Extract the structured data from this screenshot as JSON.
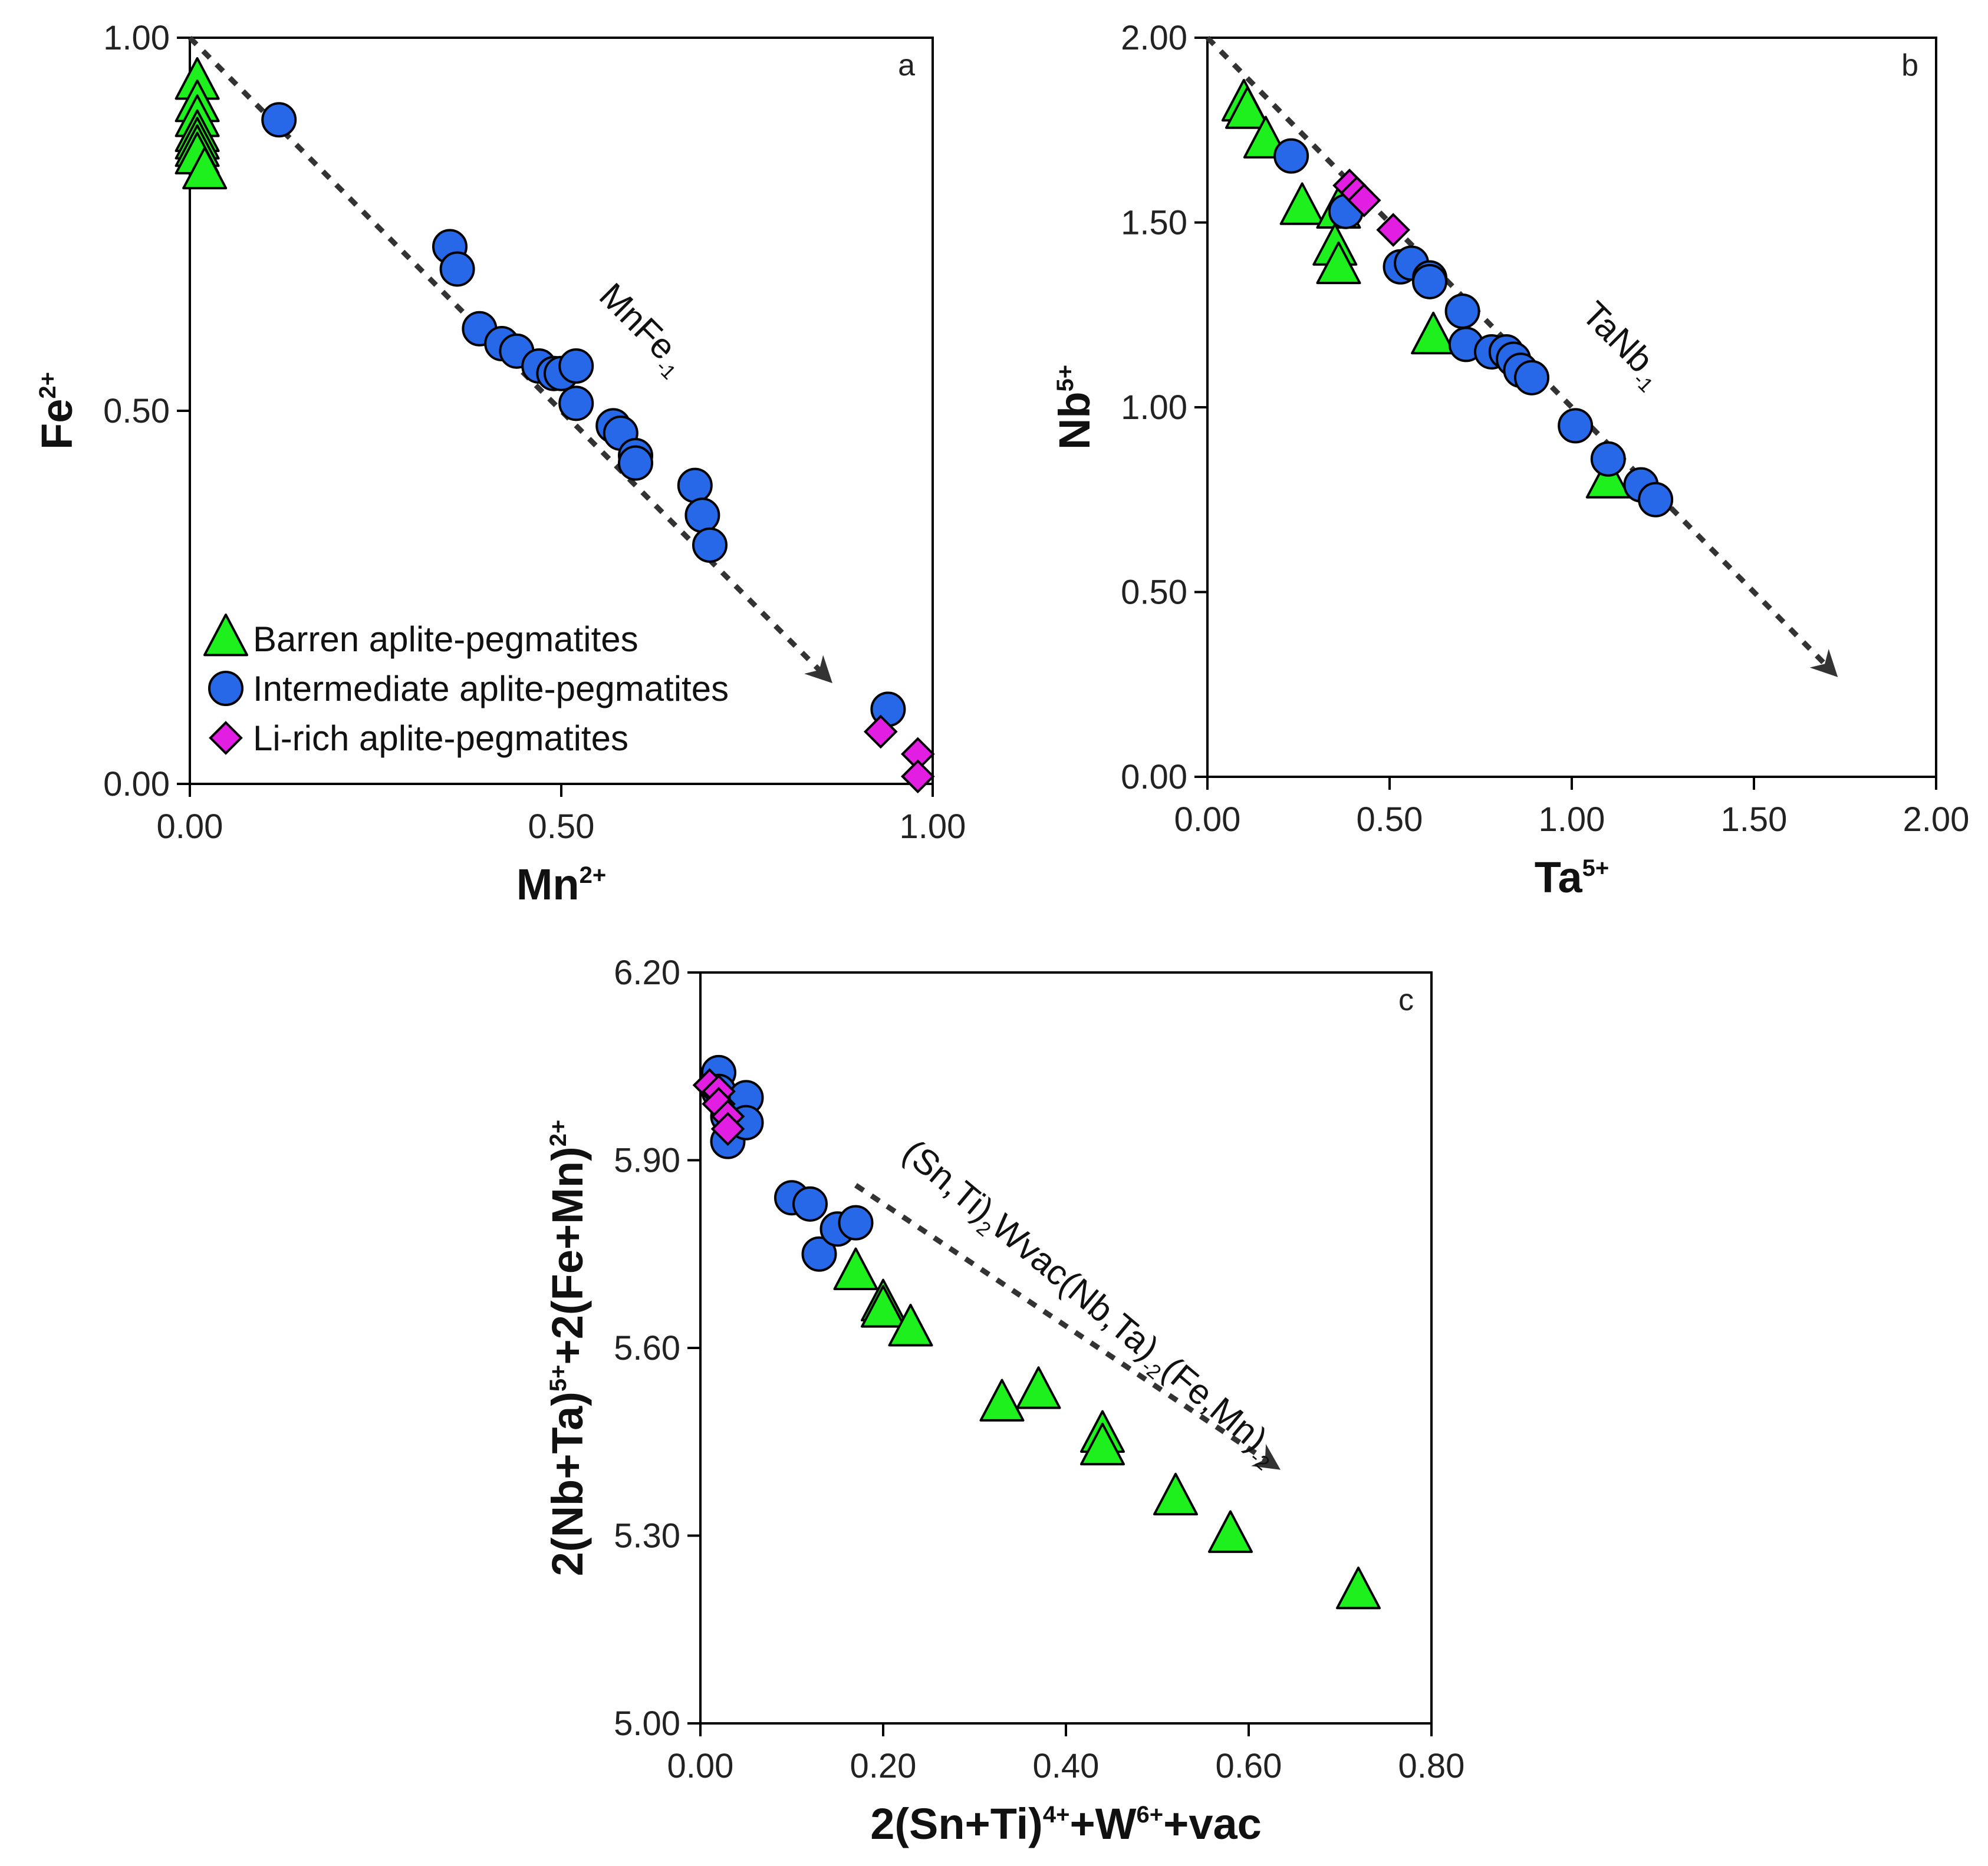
{
  "figure_title": "",
  "colors": {
    "barren": "#1ef01e",
    "intermediate": "#2668e8",
    "li_rich": "#e21ee2",
    "arrow": "#333333",
    "axis": "#000000"
  },
  "legend": {
    "position": "bottom-left of panel a",
    "entries": [
      {
        "label": "Barren aplite-pegmatites",
        "marker": "triangle",
        "color": "#1ef01e"
      },
      {
        "label": "Intermediate aplite-pegmatites",
        "marker": "circle",
        "color": "#2668e8"
      },
      {
        "label": "Li-rich aplite-pegmatites",
        "marker": "diamond",
        "color": "#e21ee2"
      }
    ]
  },
  "chart_data": [
    {
      "type": "scatter",
      "panel": "a",
      "xlabel": {
        "base": "Mn",
        "sup": "2+"
      },
      "ylabel": {
        "base": "Fe",
        "sup": "2+"
      },
      "xlim": [
        0,
        1
      ],
      "ylim": [
        0,
        1
      ],
      "xticks": [
        "0.00",
        "0.50",
        "1.00"
      ],
      "yticks": [
        "0.00",
        "0.50",
        "1.00"
      ],
      "xtick_values": [
        0,
        0.5,
        1
      ],
      "ytick_values": [
        0,
        0.5,
        1
      ],
      "vector": {
        "from": [
          0,
          1
        ],
        "to": [
          0.86,
          0.14
        ]
      },
      "annotation": {
        "base": "MnFe",
        "sub": "-1",
        "x": 0.6,
        "y": 0.6,
        "rotation": 45
      },
      "series": [
        {
          "name": "Barren aplite-pegmatites",
          "marker": "triangle",
          "x": [
            0.01,
            0.01,
            0.01,
            0.01,
            0.01,
            0.01,
            0.01,
            0.02
          ],
          "y": [
            0.94,
            0.91,
            0.89,
            0.87,
            0.86,
            0.85,
            0.84,
            0.82
          ]
        },
        {
          "name": "Intermediate aplite-pegmatites",
          "marker": "circle",
          "x": [
            0.12,
            0.35,
            0.36,
            0.39,
            0.42,
            0.44,
            0.47,
            0.49,
            0.5,
            0.52,
            0.52,
            0.57,
            0.58,
            0.6,
            0.6,
            0.68,
            0.69,
            0.7,
            0.94
          ],
          "y": [
            0.89,
            0.72,
            0.69,
            0.61,
            0.59,
            0.58,
            0.56,
            0.55,
            0.55,
            0.56,
            0.51,
            0.48,
            0.47,
            0.44,
            0.43,
            0.4,
            0.36,
            0.32,
            0.1
          ]
        },
        {
          "name": "Li-rich aplite-pegmatites",
          "marker": "diamond",
          "x": [
            0.93,
            0.98,
            0.98
          ],
          "y": [
            0.07,
            0.04,
            0.01
          ]
        }
      ]
    },
    {
      "type": "scatter",
      "panel": "b",
      "xlabel": {
        "base": "Ta",
        "sup": "5+"
      },
      "ylabel": {
        "base": "Nb",
        "sup": "5+"
      },
      "xlim": [
        0,
        2
      ],
      "ylim": [
        0,
        2
      ],
      "xticks": [
        "0.00",
        "0.50",
        "1.00",
        "1.50",
        "2.00"
      ],
      "yticks": [
        "0.00",
        "0.50",
        "1.00",
        "1.50",
        "2.00"
      ],
      "xtick_values": [
        0,
        0.5,
        1,
        1.5,
        2
      ],
      "ytick_values": [
        0,
        0.5,
        1,
        1.5,
        2
      ],
      "vector": {
        "from": [
          0,
          2
        ],
        "to": [
          1.72,
          0.28
        ]
      },
      "annotation": {
        "base": "TaNb",
        "sub": "-1",
        "x": 1.12,
        "y": 1.15,
        "rotation": 45
      },
      "series": [
        {
          "name": "Barren aplite-pegmatites",
          "marker": "triangle",
          "x": [
            0.1,
            0.11,
            0.16,
            0.26,
            0.36,
            0.35,
            0.36,
            0.62,
            1.1
          ],
          "y": [
            1.82,
            1.8,
            1.72,
            1.54,
            1.53,
            1.43,
            1.38,
            1.19,
            0.8
          ]
        },
        {
          "name": "Intermediate aplite-pegmatites",
          "marker": "circle",
          "x": [
            0.23,
            0.38,
            0.53,
            0.56,
            0.61,
            0.61,
            0.7,
            0.71,
            0.78,
            0.82,
            0.84,
            0.86,
            0.89,
            1.01,
            1.1,
            1.19,
            1.23
          ],
          "y": [
            1.68,
            1.53,
            1.38,
            1.39,
            1.35,
            1.34,
            1.26,
            1.17,
            1.15,
            1.15,
            1.13,
            1.1,
            1.08,
            0.95,
            0.86,
            0.79,
            0.75
          ]
        },
        {
          "name": "Li-rich aplite-pegmatites",
          "marker": "diamond",
          "x": [
            0.39,
            0.41,
            0.43,
            0.51
          ],
          "y": [
            1.6,
            1.58,
            1.56,
            1.48
          ]
        }
      ]
    },
    {
      "type": "scatter",
      "panel": "c",
      "xlabel": {
        "parts": [
          [
            "2(Sn+Ti)",
            ""
          ],
          [
            "4+",
            "sup"
          ],
          [
            "+W",
            ""
          ],
          [
            "6+",
            "sup"
          ],
          [
            "+vac",
            ""
          ]
        ]
      },
      "ylabel": {
        "parts": [
          [
            "2(Nb+Ta)",
            ""
          ],
          [
            "5+",
            "sup"
          ],
          [
            "+2(Fe+Mn)",
            ""
          ],
          [
            "2+",
            "sup"
          ]
        ]
      },
      "xlim": [
        0,
        0.8
      ],
      "ylim": [
        5,
        6.2
      ],
      "xticks": [
        "0.00",
        "0.20",
        "0.40",
        "0.60",
        "0.80"
      ],
      "yticks": [
        "5.00",
        "5.30",
        "5.60",
        "5.90",
        "6.20"
      ],
      "xtick_values": [
        0,
        0.2,
        0.4,
        0.6,
        0.8
      ],
      "ytick_values": [
        5,
        5.3,
        5.6,
        5.9,
        6.2
      ],
      "vector": {
        "from": [
          0.17,
          5.86
        ],
        "to": [
          0.63,
          5.41
        ]
      },
      "annotation": {
        "parts": [
          [
            "(Sn,Ti)",
            ""
          ],
          [
            "2",
            "sub"
          ],
          [
            "Wvac(Nb,Ta)",
            ""
          ],
          [
            "-2",
            "sub"
          ],
          [
            "(Fe,Mn)",
            ""
          ],
          [
            "-2",
            "sub"
          ]
        ],
        "x": 0.42,
        "y": 5.66,
        "rotation": 40
      },
      "series": [
        {
          "name": "Barren aplite-pegmatites",
          "marker": "triangle",
          "x": [
            0.17,
            0.2,
            0.2,
            0.23,
            0.33,
            0.37,
            0.44,
            0.44,
            0.52,
            0.58,
            0.72
          ],
          "y": [
            5.72,
            5.67,
            5.66,
            5.63,
            5.51,
            5.53,
            5.46,
            5.44,
            5.36,
            5.3,
            5.21
          ]
        },
        {
          "name": "Intermediate aplite-pegmatites",
          "marker": "circle",
          "x": [
            0.02,
            0.02,
            0.03,
            0.03,
            0.05,
            0.05,
            0.1,
            0.12,
            0.13,
            0.15,
            0.17
          ],
          "y": [
            6.04,
            6.01,
            5.97,
            5.93,
            6.0,
            5.96,
            5.84,
            5.83,
            5.75,
            5.79,
            5.8
          ]
        },
        {
          "name": "Li-rich aplite-pegmatites",
          "marker": "diamond",
          "x": [
            0.01,
            0.02,
            0.02,
            0.03,
            0.03
          ],
          "y": [
            6.02,
            6.01,
            5.99,
            5.97,
            5.95
          ]
        }
      ]
    }
  ]
}
